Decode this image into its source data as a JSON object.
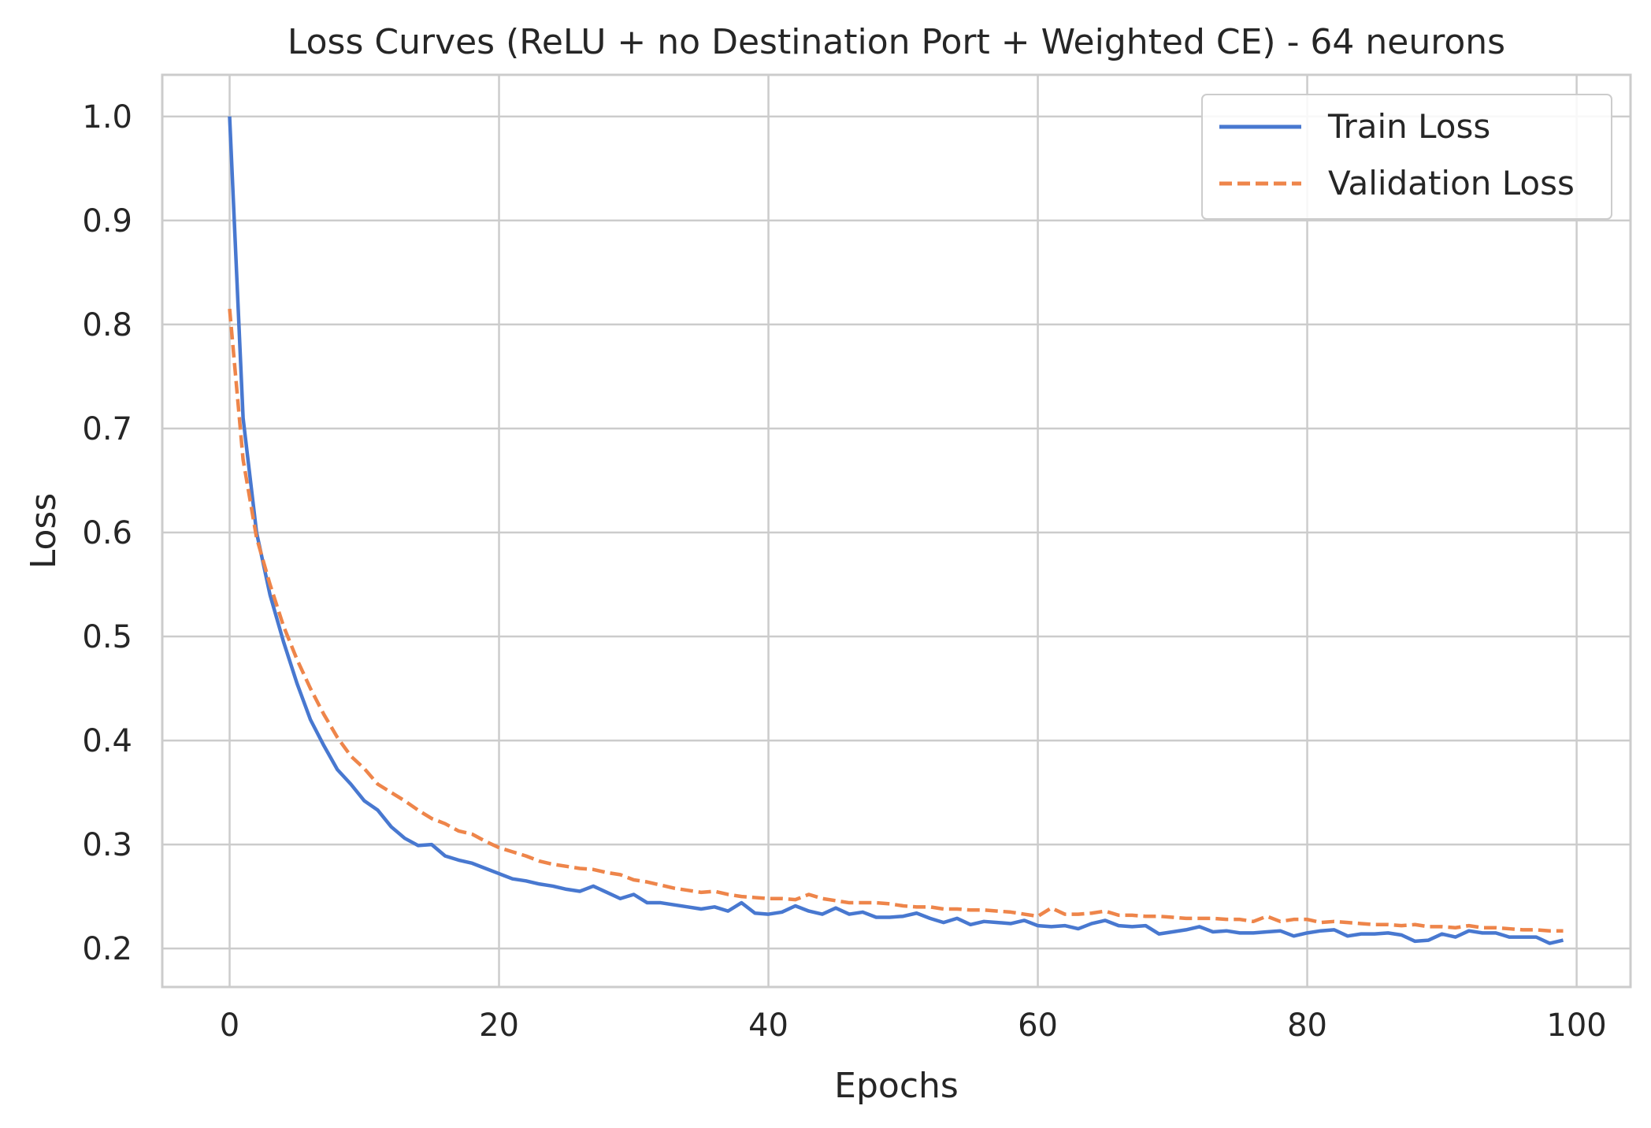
{
  "chart_data": {
    "type": "line",
    "title": "Loss Curves (ReLU + no Destination Port + Weighted CE) - 64 neurons",
    "xlabel": "Epochs",
    "ylabel": "Loss",
    "xlim": [
      -5,
      104
    ],
    "ylim": [
      0.163,
      1.04
    ],
    "xticks": [
      0,
      20,
      40,
      60,
      80,
      100
    ],
    "xtick_labels": [
      "0",
      "20",
      "40",
      "60",
      "80",
      "100"
    ],
    "yticks": [
      0.2,
      0.3,
      0.4,
      0.5,
      0.6,
      0.7,
      0.8,
      0.9,
      1.0
    ],
    "ytick_labels": [
      "0.2",
      "0.3",
      "0.4",
      "0.5",
      "0.6",
      "0.7",
      "0.8",
      "0.9",
      "1.0"
    ],
    "grid": true,
    "legend_position": "top-right",
    "series": [
      {
        "name": "Train Loss",
        "color": "#4878d0",
        "style": "solid",
        "values": [
          1.0,
          0.71,
          0.6,
          0.54,
          0.495,
          0.455,
          0.42,
          0.395,
          0.372,
          0.358,
          0.342,
          0.333,
          0.317,
          0.306,
          0.299,
          0.3,
          0.289,
          0.285,
          0.282,
          0.277,
          0.272,
          0.267,
          0.265,
          0.262,
          0.26,
          0.257,
          0.255,
          0.26,
          0.254,
          0.248,
          0.252,
          0.244,
          0.244,
          0.242,
          0.24,
          0.238,
          0.24,
          0.236,
          0.244,
          0.234,
          0.233,
          0.235,
          0.241,
          0.236,
          0.233,
          0.239,
          0.233,
          0.235,
          0.23,
          0.23,
          0.231,
          0.234,
          0.229,
          0.225,
          0.229,
          0.223,
          0.226,
          0.225,
          0.224,
          0.227,
          0.222,
          0.221,
          0.222,
          0.219,
          0.224,
          0.227,
          0.222,
          0.221,
          0.222,
          0.214,
          0.216,
          0.218,
          0.221,
          0.216,
          0.217,
          0.215,
          0.215,
          0.216,
          0.217,
          0.212,
          0.215,
          0.217,
          0.218,
          0.212,
          0.214,
          0.214,
          0.215,
          0.213,
          0.207,
          0.208,
          0.214,
          0.211,
          0.217,
          0.215,
          0.215,
          0.211,
          0.211,
          0.211,
          0.205,
          0.208
        ]
      },
      {
        "name": "Validation Loss",
        "color": "#ee854a",
        "style": "dashed",
        "values": [
          0.815,
          0.67,
          0.595,
          0.55,
          0.51,
          0.478,
          0.45,
          0.425,
          0.403,
          0.385,
          0.373,
          0.358,
          0.35,
          0.342,
          0.333,
          0.325,
          0.32,
          0.313,
          0.31,
          0.303,
          0.297,
          0.293,
          0.289,
          0.284,
          0.281,
          0.279,
          0.277,
          0.276,
          0.273,
          0.271,
          0.266,
          0.264,
          0.261,
          0.258,
          0.256,
          0.254,
          0.255,
          0.252,
          0.25,
          0.249,
          0.248,
          0.248,
          0.247,
          0.252,
          0.248,
          0.246,
          0.244,
          0.244,
          0.244,
          0.243,
          0.241,
          0.24,
          0.24,
          0.238,
          0.238,
          0.237,
          0.237,
          0.236,
          0.235,
          0.233,
          0.231,
          0.239,
          0.233,
          0.233,
          0.234,
          0.236,
          0.232,
          0.232,
          0.231,
          0.231,
          0.23,
          0.229,
          0.229,
          0.229,
          0.228,
          0.228,
          0.226,
          0.231,
          0.226,
          0.228,
          0.228,
          0.225,
          0.226,
          0.225,
          0.224,
          0.223,
          0.223,
          0.222,
          0.223,
          0.221,
          0.221,
          0.22,
          0.222,
          0.22,
          0.22,
          0.219,
          0.218,
          0.218,
          0.217,
          0.217
        ]
      }
    ]
  }
}
